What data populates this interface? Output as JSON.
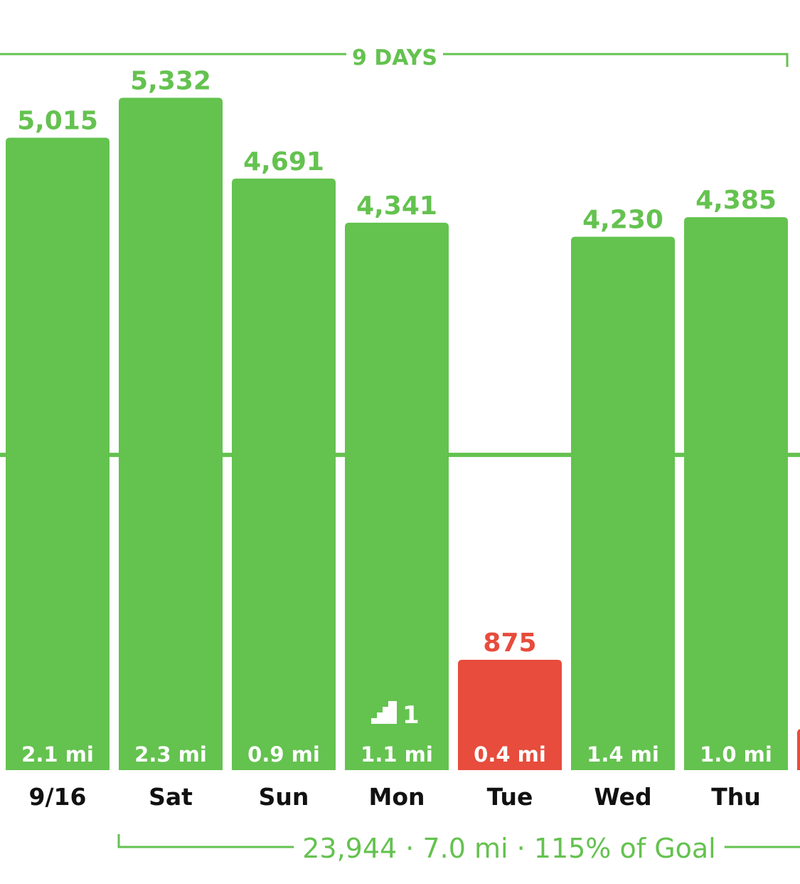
{
  "chart_data": {
    "type": "bar",
    "categories": [
      "9/16",
      "Sat",
      "Sun",
      "Mon",
      "Tue",
      "Wed",
      "Thu"
    ],
    "values": [
      5015,
      5332,
      4691,
      4341,
      875,
      4230,
      4385
    ],
    "value_labels": [
      "5,015",
      "5,332",
      "4,691",
      "4,341",
      "875",
      "4,230",
      "4,385"
    ],
    "distances": [
      "2.1",
      "2.3",
      "0.9",
      "1.1",
      "0.4",
      "1.4",
      "1.0"
    ],
    "distance_unit": "mi",
    "status": [
      "met",
      "met",
      "met",
      "met",
      "missed",
      "met",
      "met"
    ],
    "goal": 2500,
    "ylim": [
      0,
      6000
    ],
    "flights": {
      "day": "Mon",
      "count": "1"
    },
    "streak_label": "9 DAYS",
    "summary": "23,944 · 7.0 mi · 115% of Goal",
    "partial_next_status": "missed",
    "colors": {
      "met": "#64c24f",
      "missed": "#e74c3c",
      "label": "#111111",
      "on_bar": "#ffffff"
    }
  }
}
